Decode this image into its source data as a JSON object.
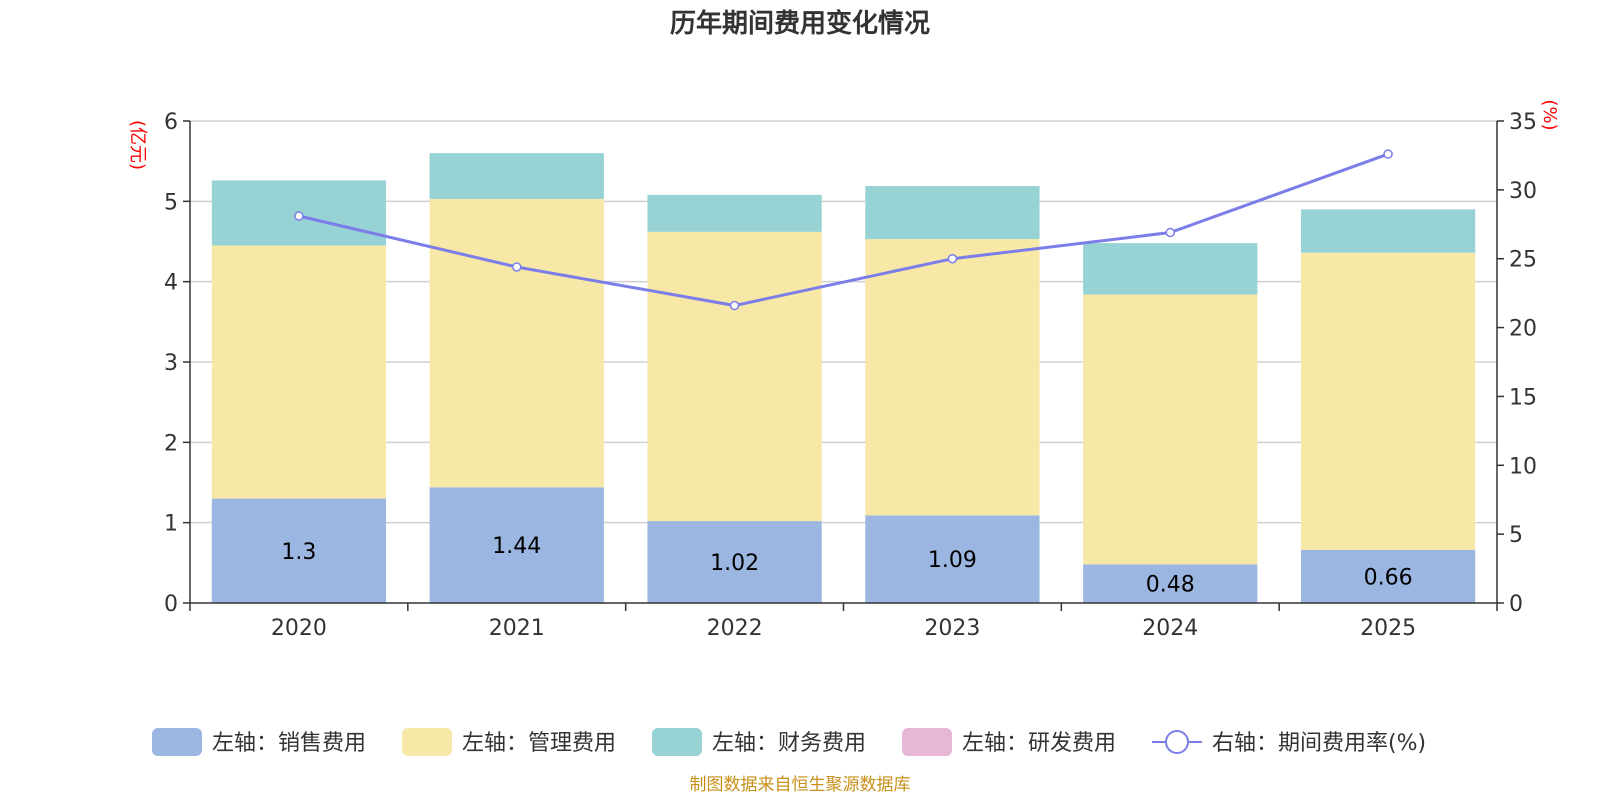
{
  "chart_data": {
    "type": "bar",
    "title": "历年期间费用变化情况",
    "categories": [
      "2020",
      "2021",
      "2022",
      "2023",
      "2024",
      "2025"
    ],
    "left_axis": {
      "unit": "(亿元)",
      "ylim": [
        0,
        6
      ],
      "ticks": [
        0,
        1,
        2,
        3,
        4,
        5,
        6
      ]
    },
    "right_axis": {
      "unit": "(%)",
      "ylim": [
        0,
        35
      ],
      "ticks": [
        0,
        5,
        10,
        15,
        20,
        25,
        30,
        35
      ]
    },
    "series": [
      {
        "name": "左轴：销售费用",
        "kind": "bar",
        "stack": "left",
        "color": "#9bb7e1",
        "values": [
          1.3,
          1.44,
          1.02,
          1.09,
          0.48,
          0.66
        ],
        "show_labels": true
      },
      {
        "name": "左轴：管理费用",
        "kind": "bar",
        "stack": "left",
        "color": "#f8e8a8",
        "values": [
          3.15,
          3.59,
          3.6,
          3.44,
          3.36,
          3.7
        ]
      },
      {
        "name": "左轴：财务费用",
        "kind": "bar",
        "stack": "left",
        "color": "#97d3d4",
        "values": [
          0.81,
          0.57,
          0.46,
          0.66,
          0.64,
          0.54
        ]
      },
      {
        "name": "左轴：研发费用",
        "kind": "bar",
        "stack": "left",
        "color": "#e8b7d8",
        "values": [
          0,
          0,
          0,
          0,
          0,
          0
        ]
      },
      {
        "name": "右轴：期间费用率(%)",
        "kind": "line",
        "axis": "right",
        "color": "#7b7ee8",
        "values": [
          28.1,
          24.4,
          21.6,
          25.0,
          26.9,
          32.6
        ]
      }
    ],
    "grid": true,
    "legend_position": "bottom",
    "source_note": "制图数据来自恒生聚源数据库"
  }
}
